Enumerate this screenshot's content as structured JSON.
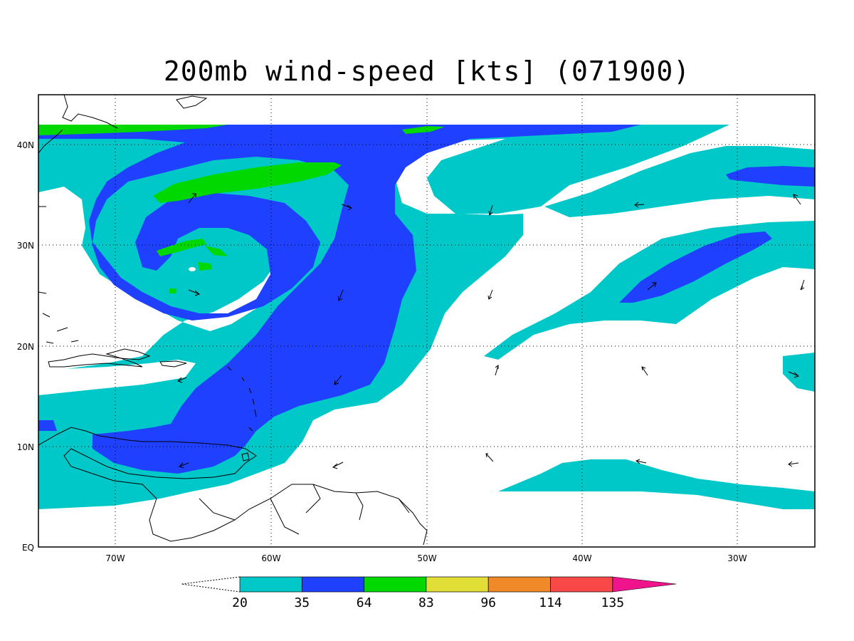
{
  "title": "200mb wind-speed [kts] (071900)",
  "lat_labels": [
    "40N",
    "30N",
    "20N",
    "10N",
    "EQ"
  ],
  "lon_labels": [
    "70W",
    "60W",
    "50W",
    "40W",
    "30W"
  ],
  "colorbar": {
    "ticks": [
      "20",
      "35",
      "64",
      "83",
      "96",
      "114",
      "135"
    ],
    "colors": [
      "#00c8c8",
      "#2040ff",
      "#00d800",
      "#e2de38",
      "#f08a28",
      "#f84848",
      "#f0148c"
    ]
  },
  "field_colors": {
    "20-35": "#00c8c8",
    "35-64": "#2040ff",
    "64-83": "#00d800"
  }
}
